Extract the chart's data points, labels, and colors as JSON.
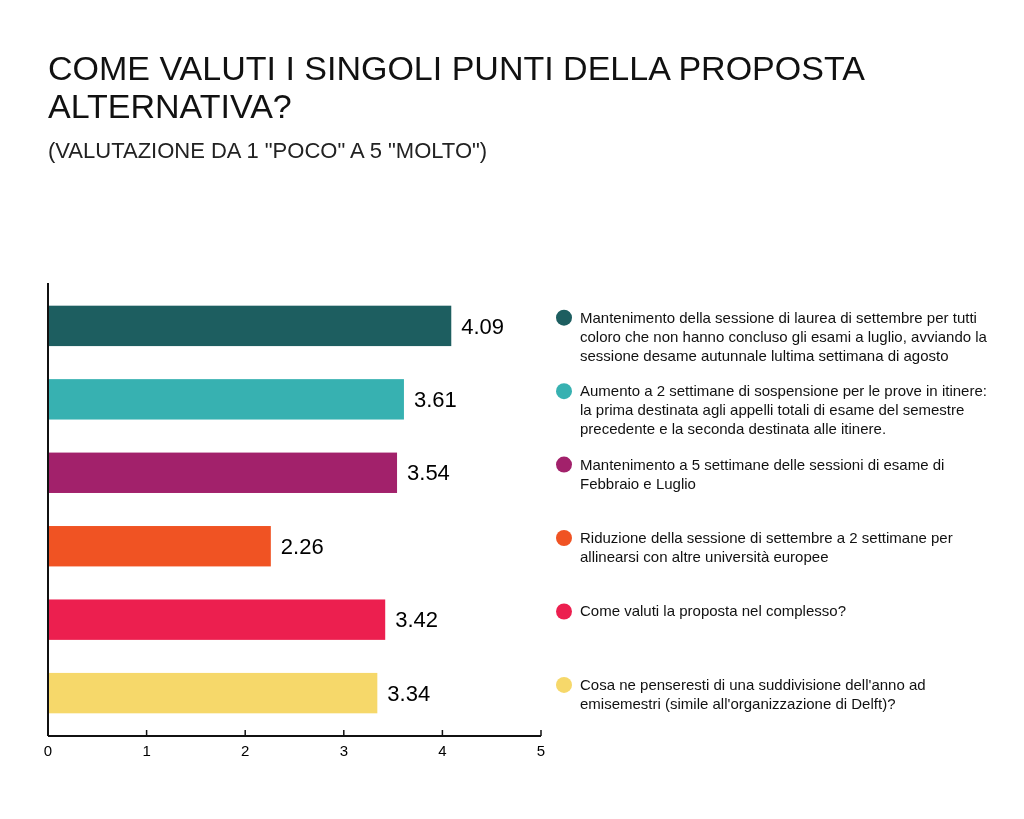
{
  "chart_data": {
    "type": "bar",
    "orientation": "horizontal",
    "title": "COME VALUTI I SINGOLI PUNTI DELLA PROPOSTA ALTERNATIVA?",
    "subtitle": "(VALUTAZIONE DA 1 \"POCO\" A 5 \"MOLTO\")",
    "categories": [
      "Mantenimento della sessione di laurea di settembre per tutti coloro che non hanno concluso gli esami a luglio, avviando la sessione desame autunnale lultima settimana di agosto",
      "Aumento a 2 settimane di sospensione per le prove in itinere: la prima destinata agli appelli totali di esame del semestre precedente e la seconda destinata alle itinere.",
      "Mantenimento a 5 settimane delle sessioni di esame di Febbraio e Luglio",
      "Riduzione della sessione di settembre a 2 settimane per allinearsi con altre università europee",
      "Come valuti la proposta nel complesso?",
      "Cosa ne penseresti di una suddivisione dell'anno ad emisemestri (simile all'organizzazione di Delft)?"
    ],
    "values": [
      4.09,
      3.61,
      3.54,
      2.26,
      3.42,
      3.34
    ],
    "colors": [
      "#1d5e60",
      "#37b1b1",
      "#a2216b",
      "#f05323",
      "#ec1f4f",
      "#f6d86a"
    ],
    "xlim": [
      0,
      5
    ],
    "xticks": [
      0,
      1,
      2,
      3,
      4,
      5
    ],
    "data_labels": true,
    "grid": false
  }
}
